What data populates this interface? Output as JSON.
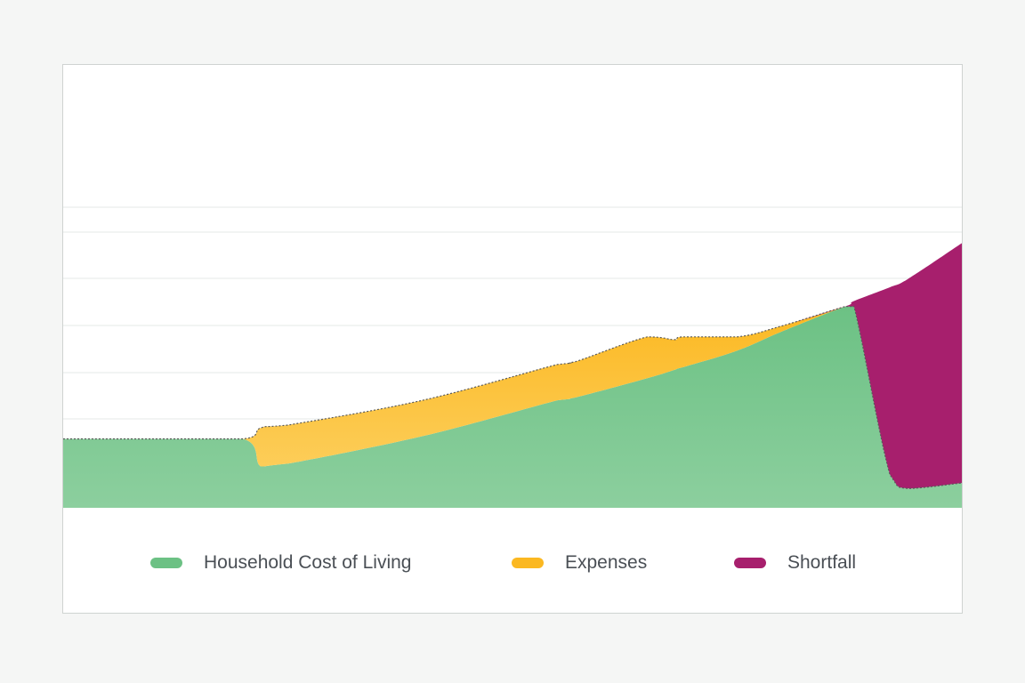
{
  "chart_data": {
    "type": "area",
    "title": "",
    "xlabel": "",
    "ylabel": "",
    "x": [
      0,
      10,
      20,
      22,
      25,
      40,
      55,
      57,
      65,
      68,
      69,
      75,
      80,
      87,
      88,
      92,
      94,
      100
    ],
    "ylim": [
      0,
      100
    ],
    "grid": true,
    "legend_position": "bottom",
    "series": [
      {
        "name": "Household Cost of Living",
        "color": "#6cc184",
        "values": [
          25,
          25,
          25,
          15,
          16,
          26,
          39,
          40,
          47,
          50,
          51,
          57,
          64,
          73,
          73,
          12,
          7,
          9
        ]
      },
      {
        "name": "Expenses",
        "color": "#fbb821",
        "values": [
          0,
          0,
          0,
          14,
          14,
          13,
          13,
          13,
          15,
          11,
          11,
          5,
          2,
          0,
          0,
          0,
          0,
          0
        ]
      },
      {
        "name": "Shortfall",
        "color": "#a71f6d",
        "values": [
          0,
          0,
          0,
          0,
          0,
          0,
          0,
          0,
          0,
          0,
          0,
          0,
          0,
          0,
          2,
          68,
          76,
          87
        ]
      }
    ]
  }
}
